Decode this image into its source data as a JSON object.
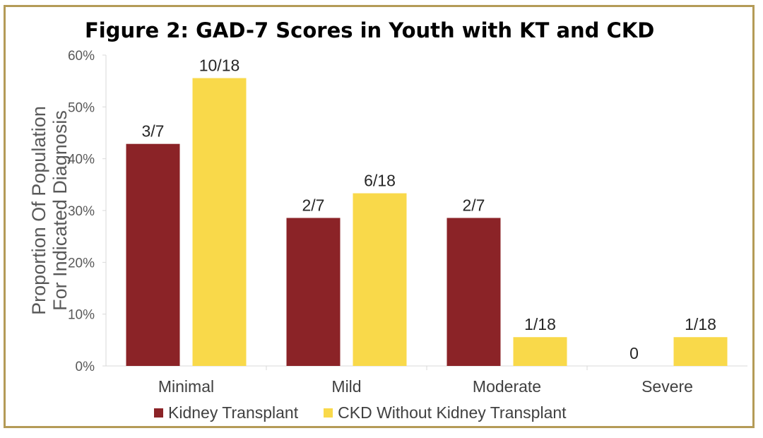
{
  "chart_data": {
    "type": "bar",
    "title": "Figure 2: GAD-7 Scores in Youth with KT and CKD",
    "ylabel_lines": [
      "Proportion Of Population",
      "For Indicated Diagnosis"
    ],
    "xlabel": "",
    "categories": [
      "Minimal",
      "Mild",
      "Moderate",
      "Severe"
    ],
    "ylim": [
      0,
      60
    ],
    "yticks": [
      "0%",
      "10%",
      "20%",
      "30%",
      "40%",
      "50%",
      "60%"
    ],
    "ytick_values": [
      0,
      10,
      20,
      30,
      40,
      50,
      60
    ],
    "grid": false,
    "legend_position": "bottom",
    "series": [
      {
        "name": "Kidney Transplant",
        "color": "#8b2327",
        "values": [
          42.86,
          28.57,
          28.57,
          0
        ],
        "labels": [
          "3/7",
          "2/7",
          "2/7",
          "0"
        ]
      },
      {
        "name": "CKD Without Kidney Transplant",
        "color": "#f9d94a",
        "values": [
          55.56,
          33.33,
          5.56,
          5.56
        ],
        "labels": [
          "10/18",
          "6/18",
          "1/18",
          "1/18"
        ]
      }
    ]
  }
}
